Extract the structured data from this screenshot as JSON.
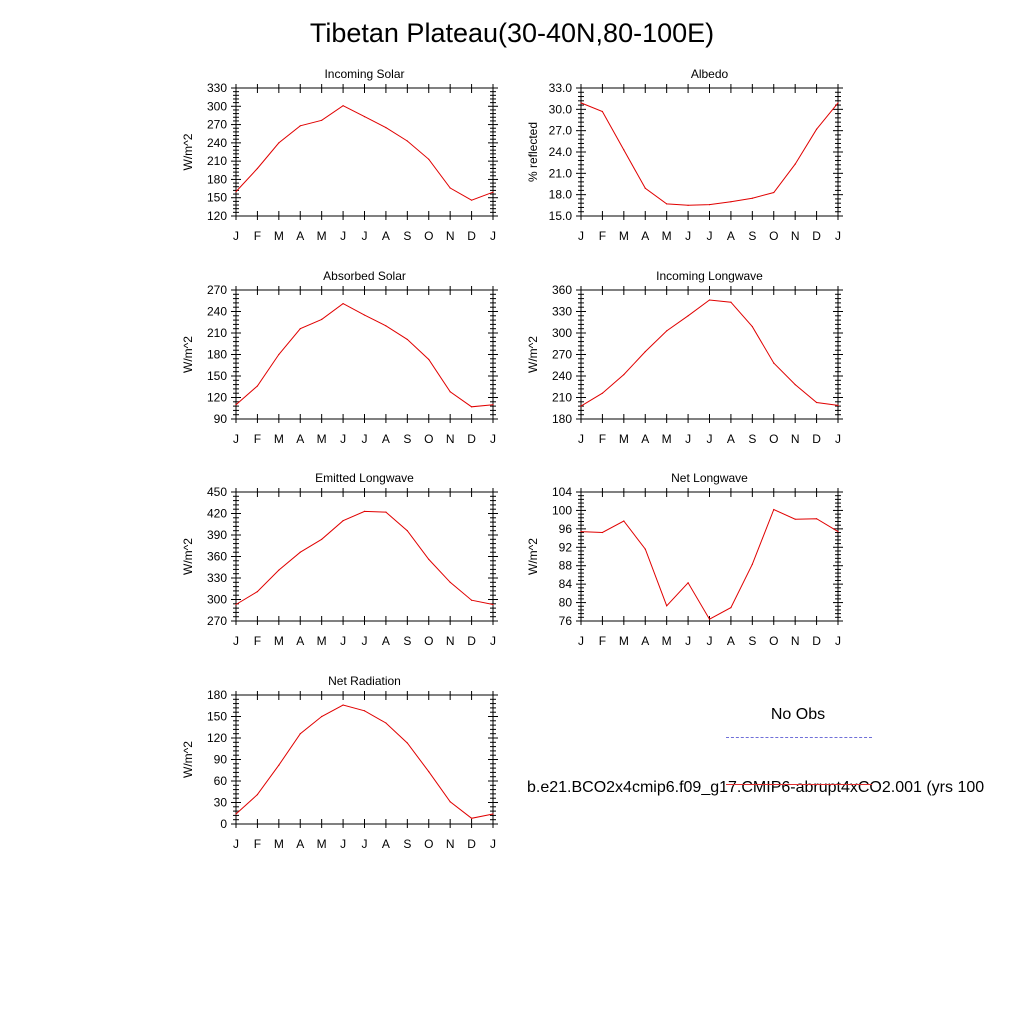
{
  "title": "Tibetan Plateau(30-40N,80-100E)",
  "legend": {
    "obs_label": "No Obs",
    "model_label": "b.e21.BCO2x4cmip6.f09_g17.CMIP6-abrupt4xCO2.001 (yrs 100",
    "model_color": "#e00000",
    "obs_color": "#6f6fd8"
  },
  "chart_data": [
    {
      "type": "line",
      "title": "Incoming Solar",
      "ylabel": "W/m^2",
      "x": [
        "J",
        "F",
        "M",
        "A",
        "M",
        "J",
        "J",
        "A",
        "S",
        "O",
        "N",
        "D",
        "J"
      ],
      "ylim": [
        120,
        330
      ],
      "yticks": [
        "120",
        "150",
        "180",
        "210",
        "240",
        "270",
        "300",
        "330"
      ],
      "series": [
        {
          "values": [
            160,
            198,
            240,
            268,
            277,
            301,
            283,
            265,
            243,
            213,
            166,
            146,
            159
          ]
        }
      ]
    },
    {
      "type": "line",
      "title": "Albedo",
      "ylabel": "% reflected",
      "x": [
        "J",
        "F",
        "M",
        "A",
        "M",
        "J",
        "J",
        "A",
        "S",
        "O",
        "N",
        "D",
        "J"
      ],
      "ylim": [
        15.0,
        33.0
      ],
      "yticks": [
        "15.0",
        "18.0",
        "21.0",
        "24.0",
        "27.0",
        "30.0",
        "33.0"
      ],
      "series": [
        {
          "values": [
            30.9,
            29.7,
            24.3,
            18.9,
            16.7,
            16.5,
            16.6,
            17.0,
            17.5,
            18.3,
            22.3,
            27.2,
            30.9
          ]
        }
      ]
    },
    {
      "type": "line",
      "title": "Absorbed Solar",
      "ylabel": "W/m^2",
      "x": [
        "J",
        "F",
        "M",
        "A",
        "M",
        "J",
        "J",
        "A",
        "S",
        "O",
        "N",
        "D",
        "J"
      ],
      "ylim": [
        90,
        270
      ],
      "yticks": [
        "90",
        "120",
        "150",
        "180",
        "210",
        "240",
        "270"
      ],
      "series": [
        {
          "values": [
            110,
            136,
            180,
            216,
            229,
            251,
            235,
            220,
            201,
            173,
            128,
            107,
            110
          ]
        }
      ]
    },
    {
      "type": "line",
      "title": "Incoming Longwave",
      "ylabel": "W/m^2",
      "x": [
        "J",
        "F",
        "M",
        "A",
        "M",
        "J",
        "J",
        "A",
        "S",
        "O",
        "N",
        "D",
        "J"
      ],
      "ylim": [
        180,
        360
      ],
      "yticks": [
        "180",
        "210",
        "240",
        "270",
        "300",
        "330",
        "360"
      ],
      "series": [
        {
          "values": [
            198,
            216,
            242,
            274,
            303,
            324,
            346,
            343,
            309,
            258,
            228,
            203,
            199
          ]
        }
      ]
    },
    {
      "type": "line",
      "title": "Emitted Longwave",
      "ylabel": "W/m^2",
      "x": [
        "J",
        "F",
        "M",
        "A",
        "M",
        "J",
        "J",
        "A",
        "S",
        "O",
        "N",
        "D",
        "J"
      ],
      "ylim": [
        270,
        450
      ],
      "yticks": [
        "270",
        "300",
        "330",
        "360",
        "390",
        "420",
        "450"
      ],
      "series": [
        {
          "values": [
            293,
            311,
            341,
            366,
            384,
            410,
            423,
            422,
            396,
            356,
            324,
            299,
            293
          ]
        }
      ]
    },
    {
      "type": "line",
      "title": "Net Longwave",
      "ylabel": "W/m^2",
      "x": [
        "J",
        "F",
        "M",
        "A",
        "M",
        "J",
        "J",
        "A",
        "S",
        "O",
        "N",
        "D",
        "J"
      ],
      "ylim": [
        76,
        104
      ],
      "yticks": [
        "76",
        "80",
        "84",
        "88",
        "92",
        "96",
        "100",
        "104"
      ],
      "series": [
        {
          "values": [
            95.4,
            95.2,
            97.7,
            91.6,
            79.3,
            84.3,
            76.4,
            78.9,
            88.3,
            100.2,
            98.1,
            98.2,
            95.4
          ]
        }
      ]
    },
    {
      "type": "line",
      "title": "Net Radiation",
      "ylabel": "W/m^2",
      "x": [
        "J",
        "F",
        "M",
        "A",
        "M",
        "J",
        "J",
        "A",
        "S",
        "O",
        "N",
        "D",
        "J"
      ],
      "ylim": [
        0,
        180
      ],
      "yticks": [
        "0",
        "30",
        "60",
        "90",
        "120",
        "150",
        "180"
      ],
      "series": [
        {
          "values": [
            14,
            41,
            82,
            126,
            150,
            166,
            158,
            141,
            113,
            73,
            31,
            8,
            14
          ]
        }
      ]
    }
  ]
}
